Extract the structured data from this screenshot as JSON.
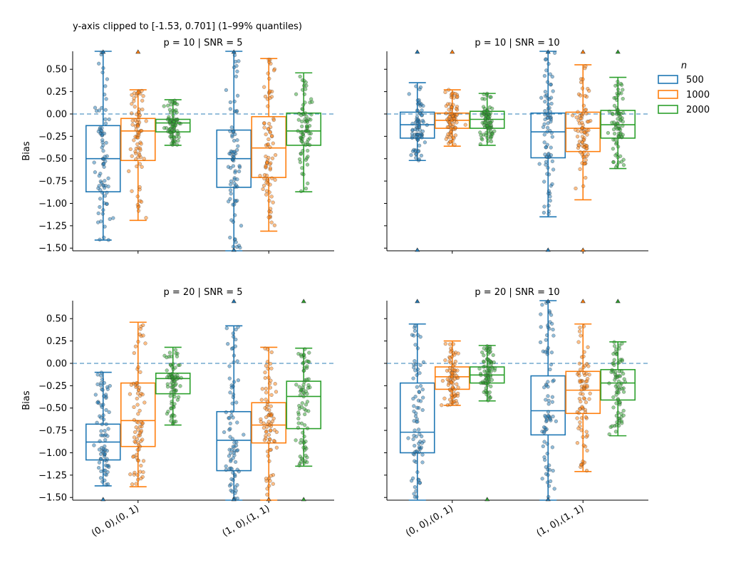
{
  "figure": {
    "suptitle": "y-axis clipped to [-1.53, 0.701] (1–99% quantiles)",
    "y_axis_label": "Bias",
    "ylim": [
      -1.53,
      0.701
    ],
    "y_ticks": [
      "0.50",
      "0.25",
      "0.00",
      "−0.25",
      "−0.50",
      "−0.75",
      "−1.00",
      "−1.25",
      "−1.50"
    ],
    "x_tick_labels": [
      "(0, 0),(0, 1)",
      "(1, 0),(1, 1)"
    ],
    "reference_line_y": 0.0
  },
  "legend": {
    "title": "n",
    "entries": [
      {
        "label": "500",
        "color": "#1f77b4"
      },
      {
        "label": "1000",
        "color": "#ff7f0e"
      },
      {
        "label": "2000",
        "color": "#2ca02c"
      }
    ]
  },
  "chart_data": [
    {
      "type": "box",
      "title": "p = 10 | SNR = 5",
      "categories": [
        "(0, 0),(0, 1)",
        "(1, 0),(1, 1)"
      ],
      "series": [
        {
          "name": "500",
          "boxes": [
            {
              "whisker_low": -1.41,
              "q1": -0.87,
              "median": -0.5,
              "q3": -0.13,
              "whisker_high": 0.701,
              "clip_top": true,
              "clip_bottom": false
            },
            {
              "whisker_low": -1.53,
              "q1": -0.82,
              "median": -0.5,
              "q3": -0.18,
              "whisker_high": 0.701,
              "clip_top": true,
              "clip_bottom": true
            }
          ]
        },
        {
          "name": "1000",
          "boxes": [
            {
              "whisker_low": -1.19,
              "q1": -0.52,
              "median": -0.19,
              "q3": -0.05,
              "whisker_high": 0.27,
              "clip_top": true,
              "clip_bottom": false
            },
            {
              "whisker_low": -1.31,
              "q1": -0.71,
              "median": -0.38,
              "q3": -0.03,
              "whisker_high": 0.62,
              "clip_top": false,
              "clip_bottom": false
            }
          ]
        },
        {
          "name": "2000",
          "boxes": [
            {
              "whisker_low": -0.35,
              "q1": -0.2,
              "median": -0.1,
              "q3": -0.06,
              "whisker_high": 0.16,
              "clip_top": false,
              "clip_bottom": false
            },
            {
              "whisker_low": -0.87,
              "q1": -0.35,
              "median": -0.19,
              "q3": 0.01,
              "whisker_high": 0.46,
              "clip_top": false,
              "clip_bottom": false
            }
          ]
        }
      ]
    },
    {
      "type": "box",
      "title": "p = 10 | SNR = 10",
      "categories": [
        "(0, 0),(0, 1)",
        "(1, 0),(1, 1)"
      ],
      "series": [
        {
          "name": "500",
          "boxes": [
            {
              "whisker_low": -0.52,
              "q1": -0.27,
              "median": -0.12,
              "q3": 0.02,
              "whisker_high": 0.35,
              "clip_top": true,
              "clip_bottom": true
            },
            {
              "whisker_low": -1.15,
              "q1": -0.49,
              "median": -0.2,
              "q3": 0.01,
              "whisker_high": 0.701,
              "clip_top": true,
              "clip_bottom": true
            }
          ]
        },
        {
          "name": "1000",
          "boxes": [
            {
              "whisker_low": -0.36,
              "q1": -0.16,
              "median": -0.07,
              "q3": 0.01,
              "whisker_high": 0.27,
              "clip_top": true,
              "clip_bottom": false
            },
            {
              "whisker_low": -0.96,
              "q1": -0.42,
              "median": -0.16,
              "q3": 0.02,
              "whisker_high": 0.55,
              "clip_top": true,
              "clip_bottom": true
            }
          ]
        },
        {
          "name": "2000",
          "boxes": [
            {
              "whisker_low": -0.35,
              "q1": -0.16,
              "median": -0.06,
              "q3": 0.03,
              "whisker_high": 0.23,
              "clip_top": false,
              "clip_bottom": false
            },
            {
              "whisker_low": -0.61,
              "q1": -0.27,
              "median": -0.12,
              "q3": 0.04,
              "whisker_high": 0.41,
              "clip_top": true,
              "clip_bottom": false
            }
          ]
        }
      ]
    },
    {
      "type": "box",
      "title": "p = 20 | SNR = 5",
      "categories": [
        "(0, 0),(0, 1)",
        "(1, 0),(1, 1)"
      ],
      "series": [
        {
          "name": "500",
          "boxes": [
            {
              "whisker_low": -1.37,
              "q1": -1.08,
              "median": -0.88,
              "q3": -0.68,
              "whisker_high": -0.1,
              "clip_top": false,
              "clip_bottom": true
            },
            {
              "whisker_low": -1.53,
              "q1": -1.2,
              "median": -0.86,
              "q3": -0.54,
              "whisker_high": 0.42,
              "clip_top": true,
              "clip_bottom": true
            }
          ]
        },
        {
          "name": "1000",
          "boxes": [
            {
              "whisker_low": -1.38,
              "q1": -0.93,
              "median": -0.64,
              "q3": -0.22,
              "whisker_high": 0.46,
              "clip_top": false,
              "clip_bottom": false
            },
            {
              "whisker_low": -1.53,
              "q1": -0.89,
              "median": -0.69,
              "q3": -0.44,
              "whisker_high": 0.18,
              "clip_top": false,
              "clip_bottom": true
            }
          ]
        },
        {
          "name": "2000",
          "boxes": [
            {
              "whisker_low": -0.69,
              "q1": -0.34,
              "median": -0.17,
              "q3": -0.11,
              "whisker_high": 0.18,
              "clip_top": false,
              "clip_bottom": false
            },
            {
              "whisker_low": -1.15,
              "q1": -0.73,
              "median": -0.37,
              "q3": -0.2,
              "whisker_high": 0.17,
              "clip_top": true,
              "clip_bottom": true
            }
          ]
        }
      ]
    },
    {
      "type": "box",
      "title": "p = 20 | SNR = 10",
      "categories": [
        "(0, 0),(0, 1)",
        "(1, 0),(1, 1)"
      ],
      "series": [
        {
          "name": "500",
          "boxes": [
            {
              "whisker_low": -1.53,
              "q1": -1.0,
              "median": -0.77,
              "q3": -0.22,
              "whisker_high": 0.44,
              "clip_top": true,
              "clip_bottom": false
            },
            {
              "whisker_low": -1.53,
              "q1": -0.8,
              "median": -0.53,
              "q3": -0.14,
              "whisker_high": 0.701,
              "clip_top": true,
              "clip_bottom": true
            }
          ]
        },
        {
          "name": "1000",
          "boxes": [
            {
              "whisker_low": -0.47,
              "q1": -0.29,
              "median": -0.15,
              "q3": -0.04,
              "whisker_high": 0.25,
              "clip_top": false,
              "clip_bottom": false
            },
            {
              "whisker_low": -1.21,
              "q1": -0.56,
              "median": -0.3,
              "q3": -0.09,
              "whisker_high": 0.44,
              "clip_top": true,
              "clip_bottom": false
            }
          ]
        },
        {
          "name": "2000",
          "boxes": [
            {
              "whisker_low": -0.42,
              "q1": -0.22,
              "median": -0.13,
              "q3": -0.04,
              "whisker_high": 0.2,
              "clip_top": false,
              "clip_bottom": true
            },
            {
              "whisker_low": -0.81,
              "q1": -0.41,
              "median": -0.22,
              "q3": -0.07,
              "whisker_high": 0.24,
              "clip_top": true,
              "clip_bottom": false
            }
          ]
        }
      ]
    }
  ]
}
